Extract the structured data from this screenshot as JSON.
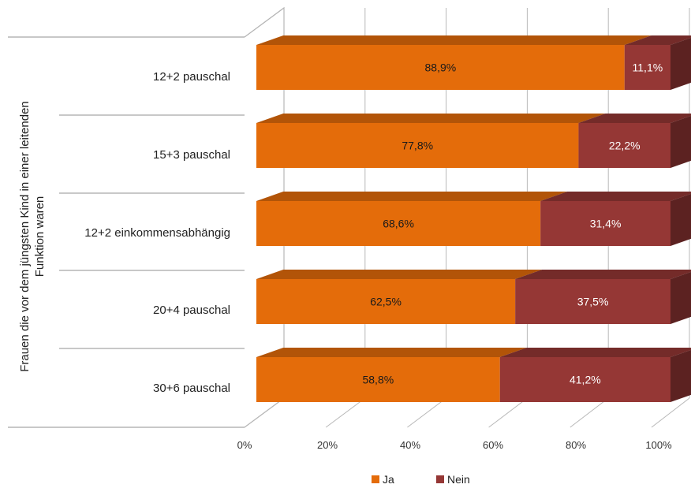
{
  "chart_data": {
    "type": "bar",
    "orientation": "horizontal",
    "stacked": "percent",
    "three_d": true,
    "categories": [
      "12+2 pauschal",
      "15+3 pauschal",
      "12+2 einkommensabhängig",
      "20+4 pauschal",
      "30+6 pauschal"
    ],
    "series": [
      {
        "name": "Ja",
        "values": [
          88.9,
          77.8,
          68.6,
          62.5,
          58.8
        ],
        "labels": [
          "88,9%",
          "77,8%",
          "68,6%",
          "62,5%",
          "58,8%"
        ],
        "color": "#E46C0A"
      },
      {
        "name": "Nein",
        "values": [
          11.1,
          22.2,
          31.4,
          37.5,
          41.2
        ],
        "labels": [
          "11,1%",
          "22,2%",
          "31,4%",
          "37,5%",
          "41,2%"
        ],
        "color": "#953735"
      }
    ],
    "x_ticks": [
      "0%",
      "20%",
      "40%",
      "60%",
      "80%",
      "100%"
    ],
    "xlim": [
      0,
      100
    ],
    "ylabel_lines": [
      "Frauen die vor dem jüngsten Kind in einer leitenden",
      "Funktion waren"
    ],
    "grid": true,
    "legend_position": "bottom"
  }
}
